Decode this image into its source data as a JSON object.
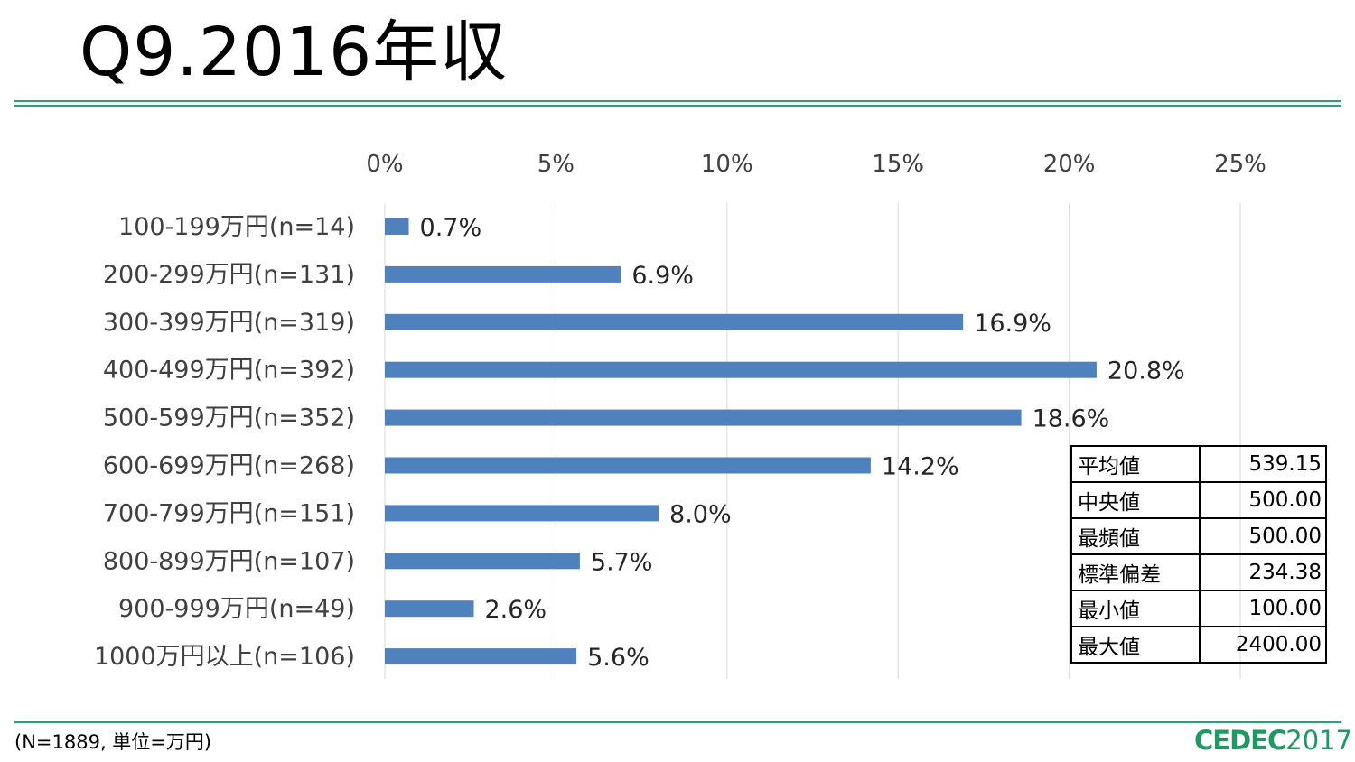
{
  "title": "Q9.2016年収",
  "chart_data": {
    "type": "bar",
    "orientation": "horizontal",
    "categories": [
      "100-199万円(n=14)",
      "200-299万円(n=131)",
      "300-399万円(n=319)",
      "400-499万円(n=392)",
      "500-599万円(n=352)",
      "600-699万円(n=268)",
      "700-799万円(n=151)",
      "800-899万円(n=107)",
      "900-999万円(n=49)",
      "1000万円以上(n=106)"
    ],
    "values": [
      0.7,
      6.9,
      16.9,
      20.8,
      18.6,
      14.2,
      8.0,
      5.7,
      2.6,
      5.6
    ],
    "data_labels": [
      "0.7%",
      "6.9%",
      "16.9%",
      "20.8%",
      "18.6%",
      "14.2%",
      "8.0%",
      "5.7%",
      "2.6%",
      "5.6%"
    ],
    "x_ticks": [
      "0%",
      "5%",
      "10%",
      "15%",
      "20%",
      "25%"
    ],
    "xlim": [
      0,
      25
    ],
    "x_axis_position": "top",
    "grid": true,
    "bar_color": "#4f81bd",
    "grid_color": "#d9d9d9"
  },
  "stats_table": {
    "rows": [
      {
        "label": "平均値",
        "value": "539.15"
      },
      {
        "label": "中央値",
        "value": "500.00"
      },
      {
        "label": "最頻値",
        "value": "500.00"
      },
      {
        "label": "標準偏差",
        "value": "234.38"
      },
      {
        "label": "最小値",
        "value": "100.00"
      },
      {
        "label": "最大値",
        "value": "2400.00"
      }
    ]
  },
  "footnote": "(N=1889, 単位=万円)",
  "logo": {
    "brand": "CEDEC",
    "year": "2017"
  },
  "colors": {
    "accent": "#2f9e73",
    "logo": "#1d9a62"
  }
}
